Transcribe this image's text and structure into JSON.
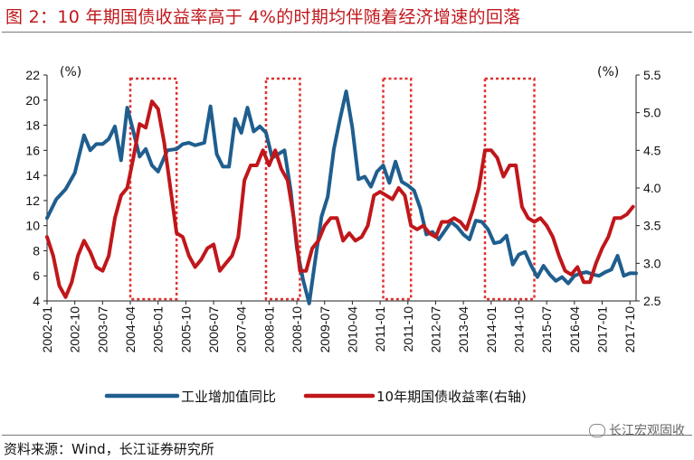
{
  "title": "图 2：10 年期国债收益率高于 4%的时期均伴随着经济增速的回落",
  "source": "资料来源：Wind，长江证券研究所",
  "watermark": "长江宏观固收",
  "colors": {
    "industrial": "#1f5e8e",
    "yield": "#c0171b",
    "box": "#e0302e",
    "title": "#c0171b"
  },
  "chart_data": {
    "type": "line",
    "y_left_unit": "(%)",
    "y_right_unit": "(%)",
    "ylim_left": [
      4,
      22
    ],
    "ylim_right": [
      2.5,
      5.5
    ],
    "yticks_left": [
      4,
      6,
      8,
      10,
      12,
      14,
      16,
      18,
      20,
      22
    ],
    "yticks_right": [
      2.5,
      3.0,
      3.5,
      4.0,
      4.5,
      5.0,
      5.5
    ],
    "yticks_right_labels": [
      "2.5",
      "3.0",
      "3.5",
      "4.0",
      "4.5",
      "5.0",
      "5.5"
    ],
    "x_start": "2002-01",
    "x_end": "2017-12",
    "x_tick_labels": [
      "2002-01",
      "2002-10",
      "2003-07",
      "2004-04",
      "2005-01",
      "2005-10",
      "2006-07",
      "2007-04",
      "2008-01",
      "2008-10",
      "2009-07",
      "2010-04",
      "2011-01",
      "2011-10",
      "2012-07",
      "2013-04",
      "2014-01",
      "2014-10",
      "2015-07",
      "2016-04",
      "2017-01",
      "2017-10"
    ],
    "legend_position": "bottom",
    "highlight_periods": [
      [
        "2004-04",
        "2005-07"
      ],
      [
        "2007-12",
        "2008-11"
      ],
      [
        "2011-02",
        "2011-11"
      ],
      [
        "2013-11",
        "2015-03"
      ]
    ],
    "series": [
      {
        "name": "工业增加值同比",
        "axis": "left",
        "points": [
          [
            "2002-01",
            10.6
          ],
          [
            "2002-04",
            12.1
          ],
          [
            "2002-07",
            12.9
          ],
          [
            "2002-10",
            14.2
          ],
          [
            "2003-01",
            17.2
          ],
          [
            "2003-03",
            16.0
          ],
          [
            "2003-05",
            16.5
          ],
          [
            "2003-07",
            16.5
          ],
          [
            "2003-09",
            16.9
          ],
          [
            "2003-11",
            17.9
          ],
          [
            "2004-01",
            15.2
          ],
          [
            "2004-03",
            19.4
          ],
          [
            "2004-05",
            17.5
          ],
          [
            "2004-07",
            15.5
          ],
          [
            "2004-09",
            16.1
          ],
          [
            "2004-11",
            14.8
          ],
          [
            "2005-01",
            14.3
          ],
          [
            "2005-04",
            16.0
          ],
          [
            "2005-07",
            16.1
          ],
          [
            "2005-09",
            16.5
          ],
          [
            "2005-11",
            16.6
          ],
          [
            "2006-01",
            16.4
          ],
          [
            "2006-04",
            16.6
          ],
          [
            "2006-06",
            19.5
          ],
          [
            "2006-08",
            15.7
          ],
          [
            "2006-10",
            14.7
          ],
          [
            "2006-12",
            14.7
          ],
          [
            "2007-02",
            18.5
          ],
          [
            "2007-04",
            17.4
          ],
          [
            "2007-06",
            19.4
          ],
          [
            "2007-08",
            17.5
          ],
          [
            "2007-10",
            17.9
          ],
          [
            "2007-12",
            17.4
          ],
          [
            "2008-02",
            15.4
          ],
          [
            "2008-04",
            15.7
          ],
          [
            "2008-06",
            16.0
          ],
          [
            "2008-08",
            12.8
          ],
          [
            "2008-10",
            8.2
          ],
          [
            "2008-12",
            5.7
          ],
          [
            "2009-02",
            3.8
          ],
          [
            "2009-04",
            7.3
          ],
          [
            "2009-06",
            10.7
          ],
          [
            "2009-08",
            12.3
          ],
          [
            "2009-10",
            16.1
          ],
          [
            "2009-12",
            18.5
          ],
          [
            "2010-02",
            20.7
          ],
          [
            "2010-04",
            17.8
          ],
          [
            "2010-06",
            13.7
          ],
          [
            "2010-08",
            13.9
          ],
          [
            "2010-10",
            13.1
          ],
          [
            "2010-12",
            14.3
          ],
          [
            "2011-02",
            14.8
          ],
          [
            "2011-04",
            13.4
          ],
          [
            "2011-06",
            15.1
          ],
          [
            "2011-08",
            13.5
          ],
          [
            "2011-10",
            13.2
          ],
          [
            "2011-12",
            12.8
          ],
          [
            "2012-02",
            11.4
          ],
          [
            "2012-04",
            9.3
          ],
          [
            "2012-06",
            9.5
          ],
          [
            "2012-08",
            8.9
          ],
          [
            "2012-10",
            9.6
          ],
          [
            "2012-12",
            10.3
          ],
          [
            "2013-02",
            9.9
          ],
          [
            "2013-04",
            9.3
          ],
          [
            "2013-06",
            8.9
          ],
          [
            "2013-08",
            10.4
          ],
          [
            "2013-10",
            10.3
          ],
          [
            "2013-12",
            9.7
          ],
          [
            "2014-02",
            8.6
          ],
          [
            "2014-04",
            8.7
          ],
          [
            "2014-06",
            9.2
          ],
          [
            "2014-08",
            6.9
          ],
          [
            "2014-10",
            7.7
          ],
          [
            "2014-12",
            7.9
          ],
          [
            "2015-02",
            6.8
          ],
          [
            "2015-04",
            5.9
          ],
          [
            "2015-06",
            6.8
          ],
          [
            "2015-08",
            6.1
          ],
          [
            "2015-10",
            5.6
          ],
          [
            "2015-12",
            5.9
          ],
          [
            "2016-02",
            5.4
          ],
          [
            "2016-04",
            6.0
          ],
          [
            "2016-06",
            6.2
          ],
          [
            "2016-08",
            6.3
          ],
          [
            "2016-10",
            6.1
          ],
          [
            "2016-12",
            6.0
          ],
          [
            "2017-02",
            6.3
          ],
          [
            "2017-04",
            6.5
          ],
          [
            "2017-06",
            7.6
          ],
          [
            "2017-08",
            6.0
          ],
          [
            "2017-10",
            6.2
          ],
          [
            "2017-12",
            6.2
          ]
        ]
      },
      {
        "name": "10年期国债收益率(右轴)",
        "axis": "right",
        "points": [
          [
            "2002-01",
            3.35
          ],
          [
            "2002-03",
            3.1
          ],
          [
            "2002-05",
            2.7
          ],
          [
            "2002-07",
            2.55
          ],
          [
            "2002-09",
            2.75
          ],
          [
            "2002-11",
            3.1
          ],
          [
            "2003-01",
            3.3
          ],
          [
            "2003-03",
            3.15
          ],
          [
            "2003-05",
            2.95
          ],
          [
            "2003-07",
            2.9
          ],
          [
            "2003-09",
            3.1
          ],
          [
            "2003-11",
            3.6
          ],
          [
            "2004-01",
            3.9
          ],
          [
            "2004-03",
            4.0
          ],
          [
            "2004-05",
            4.4
          ],
          [
            "2004-07",
            4.85
          ],
          [
            "2004-09",
            4.8
          ],
          [
            "2004-11",
            5.15
          ],
          [
            "2005-01",
            5.05
          ],
          [
            "2005-03",
            4.6
          ],
          [
            "2005-05",
            4.0
          ],
          [
            "2005-07",
            3.4
          ],
          [
            "2005-09",
            3.35
          ],
          [
            "2005-11",
            3.1
          ],
          [
            "2006-01",
            2.95
          ],
          [
            "2006-03",
            3.05
          ],
          [
            "2006-05",
            3.2
          ],
          [
            "2006-07",
            3.25
          ],
          [
            "2006-09",
            2.9
          ],
          [
            "2006-11",
            3.0
          ],
          [
            "2007-01",
            3.1
          ],
          [
            "2007-03",
            3.35
          ],
          [
            "2007-05",
            4.1
          ],
          [
            "2007-07",
            4.3
          ],
          [
            "2007-09",
            4.3
          ],
          [
            "2007-11",
            4.5
          ],
          [
            "2008-01",
            4.3
          ],
          [
            "2008-03",
            4.5
          ],
          [
            "2008-05",
            4.25
          ],
          [
            "2008-07",
            4.1
          ],
          [
            "2008-09",
            3.6
          ],
          [
            "2008-11",
            2.9
          ],
          [
            "2009-01",
            2.9
          ],
          [
            "2009-03",
            3.2
          ],
          [
            "2009-05",
            3.3
          ],
          [
            "2009-07",
            3.5
          ],
          [
            "2009-09",
            3.6
          ],
          [
            "2009-11",
            3.6
          ],
          [
            "2010-01",
            3.3
          ],
          [
            "2010-03",
            3.4
          ],
          [
            "2010-05",
            3.3
          ],
          [
            "2010-07",
            3.35
          ],
          [
            "2010-09",
            3.5
          ],
          [
            "2010-11",
            3.9
          ],
          [
            "2011-01",
            3.95
          ],
          [
            "2011-03",
            3.9
          ],
          [
            "2011-05",
            3.85
          ],
          [
            "2011-07",
            4.0
          ],
          [
            "2011-09",
            3.9
          ],
          [
            "2011-11",
            3.5
          ],
          [
            "2012-01",
            3.45
          ],
          [
            "2012-03",
            3.5
          ],
          [
            "2012-05",
            3.4
          ],
          [
            "2012-07",
            3.35
          ],
          [
            "2012-09",
            3.55
          ],
          [
            "2012-11",
            3.55
          ],
          [
            "2013-01",
            3.6
          ],
          [
            "2013-03",
            3.55
          ],
          [
            "2013-05",
            3.45
          ],
          [
            "2013-07",
            3.7
          ],
          [
            "2013-09",
            4.0
          ],
          [
            "2013-11",
            4.5
          ],
          [
            "2014-01",
            4.5
          ],
          [
            "2014-03",
            4.4
          ],
          [
            "2014-05",
            4.15
          ],
          [
            "2014-07",
            4.3
          ],
          [
            "2014-09",
            4.3
          ],
          [
            "2014-11",
            3.75
          ],
          [
            "2015-01",
            3.6
          ],
          [
            "2015-03",
            3.55
          ],
          [
            "2015-05",
            3.6
          ],
          [
            "2015-07",
            3.5
          ],
          [
            "2015-09",
            3.35
          ],
          [
            "2015-11",
            3.1
          ],
          [
            "2016-01",
            2.9
          ],
          [
            "2016-03",
            2.85
          ],
          [
            "2016-05",
            2.95
          ],
          [
            "2016-07",
            2.75
          ],
          [
            "2016-09",
            2.75
          ],
          [
            "2016-11",
            3.0
          ],
          [
            "2017-01",
            3.2
          ],
          [
            "2017-03",
            3.35
          ],
          [
            "2017-05",
            3.6
          ],
          [
            "2017-07",
            3.6
          ],
          [
            "2017-09",
            3.65
          ],
          [
            "2017-11",
            3.75
          ]
        ]
      }
    ]
  }
}
